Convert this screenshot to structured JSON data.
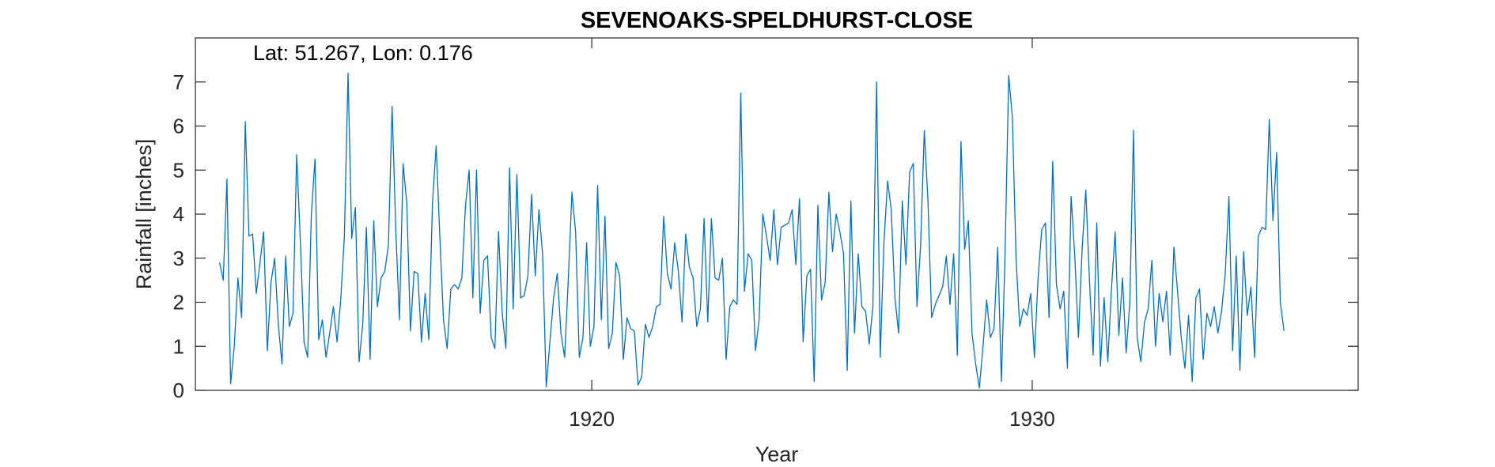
{
  "chart_data": {
    "type": "line",
    "title": "SEVENOAKS-SPELDHURST-CLOSE",
    "xlabel": "Year",
    "ylabel": "Rainfall [inches]",
    "annotation": "Lat: 51.267, Lon: 0.176",
    "xlim": [
      1911.0,
      1937.4
    ],
    "ylim": [
      0,
      8
    ],
    "xticks": [
      1920,
      1930
    ],
    "yticks": [
      0,
      1,
      2,
      3,
      4,
      5,
      6,
      7
    ],
    "grid": false,
    "series": [
      {
        "color": "#0072bd",
        "x_start": 1911.55,
        "x_step": 0.08333,
        "values": [
          2.9,
          2.5,
          4.8,
          0.15,
          1.0,
          2.55,
          1.65,
          6.1,
          3.5,
          3.55,
          2.2,
          2.9,
          3.6,
          0.9,
          2.45,
          3.0,
          1.5,
          0.6,
          3.05,
          1.45,
          1.75,
          5.35,
          3.4,
          1.1,
          0.75,
          4.0,
          5.25,
          1.15,
          1.6,
          0.75,
          1.3,
          1.9,
          1.1,
          2.05,
          3.5,
          7.2,
          3.45,
          4.15,
          0.65,
          1.5,
          3.7,
          0.7,
          3.85,
          1.9,
          2.55,
          2.7,
          3.3,
          6.45,
          3.65,
          1.6,
          5.15,
          4.25,
          1.35,
          2.7,
          2.65,
          1.1,
          2.2,
          1.15,
          4.25,
          5.55,
          3.5,
          1.6,
          0.95,
          2.3,
          2.4,
          2.3,
          2.55,
          4.2,
          5.0,
          2.1,
          5.0,
          1.75,
          2.95,
          3.05,
          1.2,
          0.95,
          3.6,
          1.75,
          0.95,
          5.05,
          1.85,
          4.9,
          2.1,
          2.15,
          2.6,
          4.45,
          2.6,
          4.1,
          3.1,
          0.08,
          1.1,
          2.1,
          2.65,
          1.3,
          0.75,
          2.5,
          4.5,
          3.6,
          0.75,
          1.2,
          3.35,
          1.0,
          1.45,
          4.65,
          1.6,
          3.95,
          0.95,
          1.3,
          2.9,
          2.6,
          0.7,
          1.65,
          1.4,
          1.35,
          0.12,
          0.3,
          1.5,
          1.2,
          1.45,
          1.9,
          1.95,
          3.95,
          2.65,
          2.3,
          3.35,
          2.7,
          1.55,
          3.55,
          2.8,
          2.55,
          1.45,
          1.85,
          3.9,
          1.55,
          3.9,
          2.55,
          2.5,
          3.0,
          0.7,
          1.9,
          2.05,
          1.95,
          6.75,
          2.25,
          3.1,
          2.95,
          0.9,
          1.6,
          4.0,
          3.5,
          2.95,
          4.1,
          2.85,
          3.7,
          3.75,
          3.8,
          4.1,
          2.85,
          4.35,
          1.1,
          2.6,
          2.75,
          0.2,
          4.2,
          2.05,
          2.45,
          4.5,
          3.15,
          4.0,
          3.6,
          3.1,
          0.45,
          4.3,
          1.3,
          3.1,
          1.9,
          1.8,
          1.05,
          1.9,
          7.0,
          0.75,
          3.35,
          4.75,
          4.1,
          2.1,
          1.3,
          4.3,
          2.85,
          4.95,
          5.15,
          1.9,
          3.3,
          5.9,
          4.3,
          1.65,
          1.95,
          2.15,
          2.35,
          3.05,
          1.95,
          3.1,
          0.8,
          5.65,
          3.2,
          3.85,
          1.3,
          0.6,
          0.05,
          1.0,
          2.05,
          1.2,
          1.4,
          3.25,
          0.2,
          3.05,
          7.15,
          6.2,
          3.0,
          1.45,
          1.85,
          1.7,
          2.2,
          0.75,
          2.55,
          3.65,
          3.8,
          1.65,
          5.2,
          2.4,
          1.85,
          2.25,
          0.5,
          4.4,
          3.05,
          1.2,
          3.2,
          4.55,
          2.5,
          0.8,
          3.8,
          0.55,
          2.1,
          0.65,
          2.3,
          3.6,
          1.25,
          2.55,
          0.85,
          2.0,
          5.9,
          1.2,
          0.65,
          1.55,
          1.85,
          2.95,
          1.0,
          2.2,
          1.55,
          2.25,
          0.8,
          3.25,
          2.25,
          1.2,
          0.5,
          1.7,
          0.2,
          2.1,
          2.3,
          0.7,
          1.75,
          1.45,
          1.9,
          1.3,
          1.8,
          2.65,
          4.4,
          0.9,
          3.05,
          0.45,
          3.15,
          1.7,
          2.35,
          0.75,
          3.5,
          3.7,
          3.65,
          6.15,
          3.85,
          5.4,
          2.0,
          1.35
        ]
      }
    ]
  }
}
